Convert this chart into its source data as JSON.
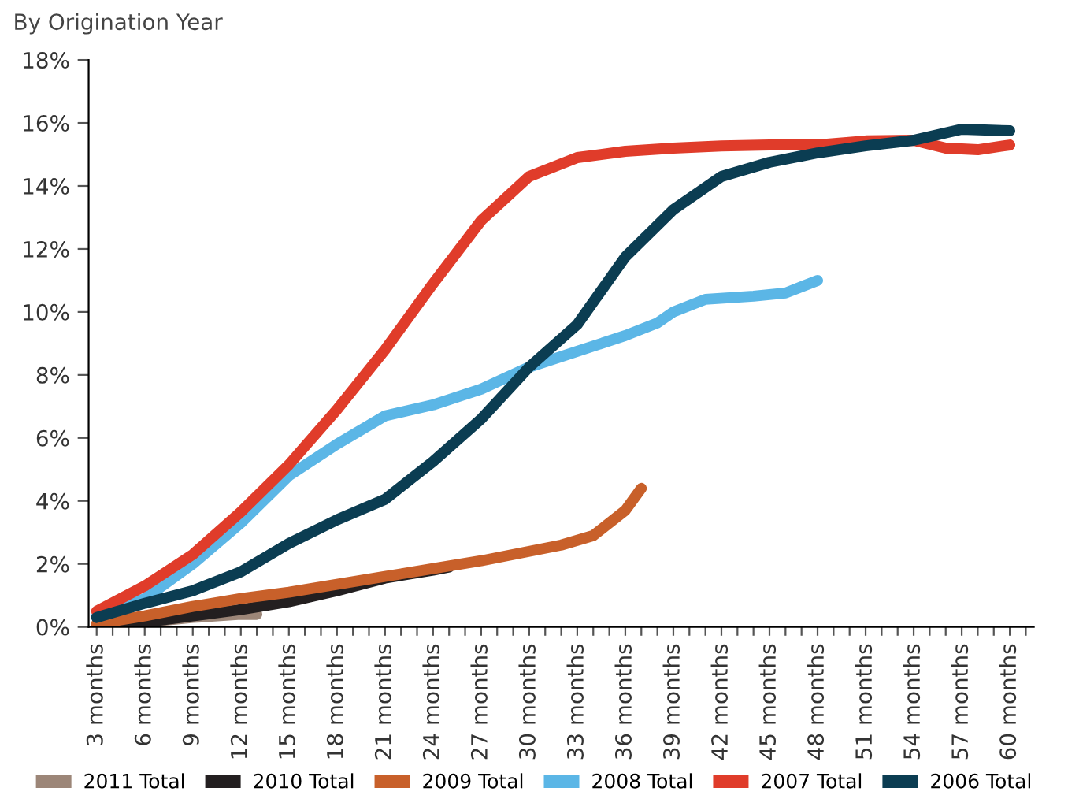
{
  "chart_data": {
    "type": "line",
    "title": "By Origination Year",
    "xlim": [
      2.5,
      61.5
    ],
    "ylim": [
      0,
      18
    ],
    "yticks": [
      {
        "value": 0,
        "label": "0%"
      },
      {
        "value": 2,
        "label": "2%"
      },
      {
        "value": 4,
        "label": "4%"
      },
      {
        "value": 6,
        "label": "6%"
      },
      {
        "value": 8,
        "label": "8%"
      },
      {
        "value": 10,
        "label": "10%"
      },
      {
        "value": 12,
        "label": "12%"
      },
      {
        "value": 14,
        "label": "14%"
      },
      {
        "value": 16,
        "label": "16%"
      },
      {
        "value": 18,
        "label": "18%"
      }
    ],
    "xticks": [
      {
        "value": 3,
        "label": "3 months"
      },
      {
        "value": 4,
        "label": null
      },
      {
        "value": 5,
        "label": null
      },
      {
        "value": 6,
        "label": "6 months"
      },
      {
        "value": 7,
        "label": null
      },
      {
        "value": 8,
        "label": null
      },
      {
        "value": 9,
        "label": "9 months"
      },
      {
        "value": 10,
        "label": null
      },
      {
        "value": 11,
        "label": null
      },
      {
        "value": 12,
        "label": "12 months"
      },
      {
        "value": 13,
        "label": null
      },
      {
        "value": 14,
        "label": null
      },
      {
        "value": 15,
        "label": "15 months"
      },
      {
        "value": 16,
        "label": null
      },
      {
        "value": 17,
        "label": null
      },
      {
        "value": 18,
        "label": "18 months"
      },
      {
        "value": 19,
        "label": null
      },
      {
        "value": 20,
        "label": null
      },
      {
        "value": 21,
        "label": "21 months"
      },
      {
        "value": 22,
        "label": null
      },
      {
        "value": 23,
        "label": null
      },
      {
        "value": 24,
        "label": "24 months"
      },
      {
        "value": 25,
        "label": null
      },
      {
        "value": 26,
        "label": null
      },
      {
        "value": 27,
        "label": "27 months"
      },
      {
        "value": 28,
        "label": null
      },
      {
        "value": 29,
        "label": null
      },
      {
        "value": 30,
        "label": "30 months"
      },
      {
        "value": 31,
        "label": null
      },
      {
        "value": 32,
        "label": null
      },
      {
        "value": 33,
        "label": "33 months"
      },
      {
        "value": 34,
        "label": null
      },
      {
        "value": 35,
        "label": null
      },
      {
        "value": 36,
        "label": "36 months"
      },
      {
        "value": 37,
        "label": null
      },
      {
        "value": 38,
        "label": null
      },
      {
        "value": 39,
        "label": "39 months"
      },
      {
        "value": 40,
        "label": null
      },
      {
        "value": 41,
        "label": null
      },
      {
        "value": 42,
        "label": "42 months"
      },
      {
        "value": 43,
        "label": null
      },
      {
        "value": 44,
        "label": null
      },
      {
        "value": 45,
        "label": "45 months"
      },
      {
        "value": 46,
        "label": null
      },
      {
        "value": 47,
        "label": null
      },
      {
        "value": 48,
        "label": "48 months"
      },
      {
        "value": 49,
        "label": null
      },
      {
        "value": 50,
        "label": null
      },
      {
        "value": 51,
        "label": "51 months"
      },
      {
        "value": 52,
        "label": null
      },
      {
        "value": 53,
        "label": null
      },
      {
        "value": 54,
        "label": "54 months"
      },
      {
        "value": 55,
        "label": null
      },
      {
        "value": 56,
        "label": null
      },
      {
        "value": 57,
        "label": "57 months"
      },
      {
        "value": 58,
        "label": null
      },
      {
        "value": 59,
        "label": null
      },
      {
        "value": 60,
        "label": "60 months"
      },
      {
        "value": 61,
        "label": null
      }
    ],
    "grid": false,
    "legend": "bottom",
    "marker": "none",
    "line_style": "solid",
    "series": [
      {
        "name": "2011 Total",
        "color": "#9c8678",
        "x": [
          3,
          6,
          9,
          12,
          13
        ],
        "values": [
          0.0,
          0.15,
          0.3,
          0.4,
          0.4
        ]
      },
      {
        "name": "2010 Total",
        "color": "#231f20",
        "x": [
          3,
          6,
          9,
          12,
          15,
          18,
          21,
          24,
          25
        ],
        "values": [
          0.0,
          0.15,
          0.35,
          0.55,
          0.8,
          1.15,
          1.55,
          1.8,
          1.9
        ]
      },
      {
        "name": "2009 Total",
        "color": "#c8602a",
        "x": [
          3,
          6,
          9,
          12,
          15,
          18,
          21,
          24,
          27,
          30,
          32,
          34,
          36,
          37
        ],
        "values": [
          0.1,
          0.35,
          0.65,
          0.9,
          1.1,
          1.35,
          1.6,
          1.85,
          2.1,
          2.4,
          2.6,
          2.9,
          3.7,
          4.4
        ]
      },
      {
        "name": "2008 Total",
        "color": "#5bb6e6",
        "x": [
          3,
          6,
          9,
          12,
          15,
          18,
          21,
          24,
          27,
          30,
          33,
          36,
          38,
          39,
          41,
          44,
          46,
          48
        ],
        "values": [
          0.35,
          0.9,
          2.0,
          3.3,
          4.8,
          5.8,
          6.7,
          7.05,
          7.55,
          8.25,
          8.75,
          9.25,
          9.65,
          10.0,
          10.4,
          10.5,
          10.6,
          11.0
        ]
      },
      {
        "name": "2007 Total",
        "color": "#e03c2a",
        "x": [
          3,
          6,
          9,
          12,
          15,
          18,
          21,
          24,
          27,
          30,
          32,
          33,
          36,
          39,
          42,
          45,
          48,
          51,
          54,
          56,
          58,
          60
        ],
        "values": [
          0.5,
          1.3,
          2.3,
          3.65,
          5.15,
          6.9,
          8.8,
          10.9,
          12.9,
          14.3,
          14.7,
          14.9,
          15.1,
          15.2,
          15.27,
          15.3,
          15.3,
          15.43,
          15.45,
          15.2,
          15.15,
          15.3
        ]
      },
      {
        "name": "2006 Total",
        "color": "#0b3d52",
        "x": [
          3,
          6,
          9,
          12,
          15,
          18,
          21,
          24,
          27,
          30,
          33,
          36,
          39,
          42,
          45,
          48,
          51,
          54,
          57,
          60
        ],
        "values": [
          0.3,
          0.75,
          1.15,
          1.75,
          2.65,
          3.4,
          4.05,
          5.25,
          6.6,
          8.25,
          9.6,
          11.75,
          13.25,
          14.3,
          14.75,
          15.05,
          15.27,
          15.45,
          15.8,
          15.75
        ]
      }
    ]
  }
}
